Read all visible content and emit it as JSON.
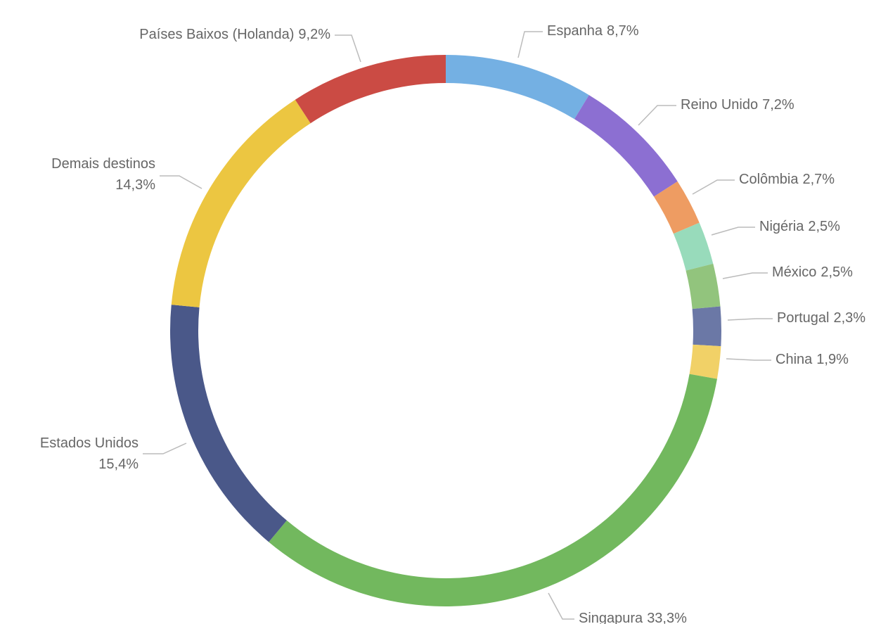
{
  "chart_data": {
    "type": "donut",
    "categories": [
      "Espanha",
      "Reino Unido",
      "Colômbia",
      "Nigéria",
      "México",
      "Portugal",
      "China",
      "Singapura",
      "Estados Unidos",
      "Demais destinos",
      "Países Baixos (Holanda)"
    ],
    "values": [
      8.7,
      7.2,
      2.7,
      2.5,
      2.5,
      2.3,
      1.9,
      33.3,
      15.4,
      14.3,
      9.2
    ],
    "value_labels": [
      "8,7%",
      "7,2%",
      "2,7%",
      "2,5%",
      "2,5%",
      "2,3%",
      "1,9%",
      "33,3%",
      "15,4%",
      "14,3%",
      "9,2%"
    ],
    "colors": [
      "#74b0e3",
      "#8c6fd2",
      "#ee9c62",
      "#98dbbb",
      "#92c47d",
      "#6b78a6",
      "#f1d167",
      "#72b85e",
      "#4a5889",
      "#ecc641",
      "#cb4b44"
    ]
  }
}
